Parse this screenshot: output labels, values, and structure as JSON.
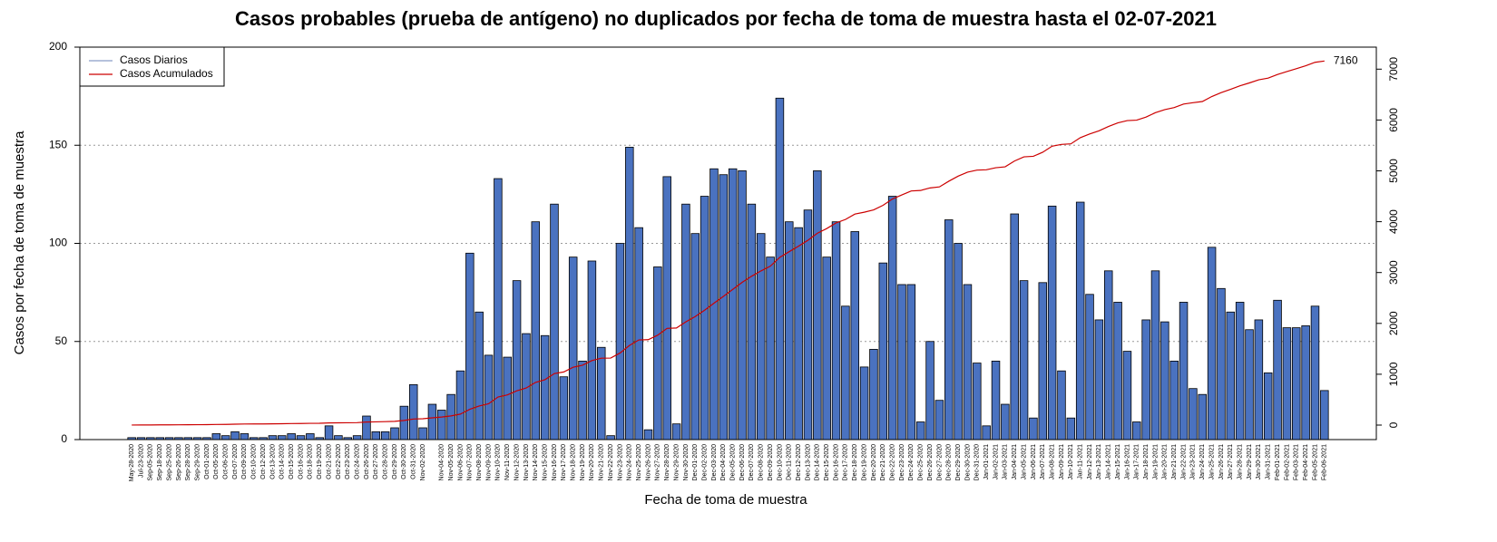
{
  "chart_data": {
    "type": "bar",
    "title": "Casos probables (prueba de antígeno) no duplicados por fecha de toma de muestra hasta el 02-07-2021",
    "x_label": "Fecha de toma de muestra",
    "y_label": "Casos por fecha de toma de muestra",
    "end_label": "7160",
    "legend": "top-left",
    "grid": true,
    "categories": [
      "May-28-2020",
      "Jul-23-2020",
      "Sep-05-2020",
      "Sep-18-2020",
      "Sep-25-2020",
      "Sep-26-2020",
      "Sep-28-2020",
      "Sep-29-2020",
      "Oct-01-2020",
      "Oct-05-2020",
      "Oct-06-2020",
      "Oct-07-2020",
      "Oct-09-2020",
      "Oct-10-2020",
      "Oct-12-2020",
      "Oct-13-2020",
      "Oct-14-2020",
      "Oct-15-2020",
      "Oct-16-2020",
      "Oct-18-2020",
      "Oct-19-2020",
      "Oct-21-2020",
      "Oct-22-2020",
      "Oct-23-2020",
      "Oct-24-2020",
      "Oct-26-2020",
      "Oct-27-2020",
      "Oct-28-2020",
      "Oct-29-2020",
      "Oct-30-2020",
      "Oct-31-2020",
      "Nov-02-2020",
      null,
      "Nov-04-2020",
      "Nov-05-2020",
      "Nov-06-2020",
      "Nov-07-2020",
      "Nov-08-2020",
      "Nov-09-2020",
      "Nov-10-2020",
      "Nov-11-2020",
      "Nov-12-2020",
      "Nov-13-2020",
      "Nov-14-2020",
      "Nov-15-2020",
      "Nov-16-2020",
      "Nov-17-2020",
      "Nov-18-2020",
      "Nov-19-2020",
      "Nov-20-2020",
      "Nov-21-2020",
      "Nov-22-2020",
      "Nov-23-2020",
      "Nov-24-2020",
      "Nov-25-2020",
      "Nov-26-2020",
      "Nov-27-2020",
      "Nov-28-2020",
      "Nov-29-2020",
      "Nov-30-2020",
      "Dec-01-2020",
      "Dec-02-2020",
      "Dec-03-2020",
      "Dec-04-2020",
      "Dec-05-2020",
      "Dec-06-2020",
      "Dec-07-2020",
      "Dec-08-2020",
      "Dec-09-2020",
      "Dec-10-2020",
      "Dec-11-2020",
      "Dec-12-2020",
      "Dec-13-2020",
      "Dec-14-2020",
      "Dec-15-2020",
      "Dec-16-2020",
      "Dec-17-2020",
      "Dec-18-2020",
      "Dec-19-2020",
      "Dec-20-2020",
      "Dec-21-2020",
      "Dec-22-2020",
      "Dec-23-2020",
      "Dec-24-2020",
      "Dec-25-2020",
      "Dec-26-2020",
      "Dec-27-2020",
      "Dec-28-2020",
      "Dec-29-2020",
      "Dec-30-2020",
      "Dec-31-2020",
      "Jan-01-2021",
      "Jan-02-2021",
      "Jan-03-2021",
      "Jan-04-2021",
      "Jan-05-2021",
      "Jan-06-2021",
      "Jan-07-2021",
      "Jan-08-2021",
      "Jan-09-2021",
      "Jan-10-2021",
      "Jan-11-2021",
      "Jan-12-2021",
      "Jan-13-2021",
      "Jan-14-2021",
      "Jan-15-2021",
      "Jan-16-2021",
      "Jan-17-2021",
      "Jan-18-2021",
      "Jan-19-2021",
      "Jan-20-2021",
      "Jan-21-2021",
      "Jan-22-2021",
      "Jan-23-2021",
      "Jan-24-2021",
      "Jan-25-2021",
      "Jan-26-2021",
      "Jan-27-2021",
      "Jan-28-2021",
      "Jan-29-2021",
      "Jan-30-2021",
      "Jan-31-2021",
      "Feb-01-2021",
      "Feb-02-2021",
      "Feb-03-2021",
      "Feb-04-2021",
      "Feb-05-2021",
      "Feb-06-2021"
    ],
    "series": [
      {
        "name": "Casos Diarios",
        "color": "#4a72c0",
        "legend_color": "#8a9ec8",
        "values": [
          1,
          1,
          1,
          1,
          1,
          1,
          1,
          1,
          1,
          3,
          2,
          4,
          3,
          1,
          1,
          2,
          2,
          3,
          2,
          3,
          1,
          7,
          2,
          1,
          2,
          12,
          4,
          4,
          6,
          17,
          28,
          6,
          18,
          15,
          23,
          35,
          95,
          65,
          43,
          133,
          42,
          81,
          54,
          111,
          53,
          120,
          32,
          93,
          40,
          91,
          47,
          2,
          100,
          149,
          108,
          5,
          88,
          134,
          8,
          120,
          105,
          124,
          138,
          135,
          138,
          137,
          120,
          105,
          93,
          174,
          111,
          108,
          117,
          137,
          93,
          111,
          68,
          106,
          37,
          46,
          90,
          124,
          79,
          79,
          9,
          50,
          20,
          112,
          100,
          79,
          39,
          7,
          40,
          18,
          115,
          81,
          11,
          80,
          119,
          35,
          11,
          121,
          74,
          61,
          86,
          70,
          45,
          9,
          61,
          86,
          60,
          40,
          70,
          26,
          23,
          98,
          77,
          65,
          70,
          56,
          61,
          34,
          71,
          57,
          57,
          58,
          68,
          25
        ]
      },
      {
        "name": "Casos Acumulados",
        "color": "#cc0000",
        "type": "line",
        "axis": "y2",
        "values": [
          1,
          2,
          3,
          4,
          5,
          6,
          7,
          8,
          9,
          12,
          14,
          18,
          21,
          22,
          23,
          25,
          27,
          30,
          32,
          35,
          36,
          43,
          45,
          46,
          48,
          60,
          64,
          68,
          74,
          91,
          119,
          125,
          143,
          158,
          181,
          216,
          311,
          376,
          419,
          552,
          594,
          675,
          729,
          840,
          893,
          1013,
          1045,
          1138,
          1178,
          1269,
          1316,
          1318,
          1418,
          1567,
          1675,
          1680,
          1768,
          1902,
          1910,
          2030,
          2135,
          2259,
          2397,
          2532,
          2670,
          2807,
          2927,
          3032,
          3125,
          3299,
          3410,
          3518,
          3635,
          3772,
          3865,
          3976,
          4044,
          4150,
          4187,
          4233,
          4323,
          4447,
          4526,
          4605,
          4614,
          4664,
          4684,
          4796,
          4896,
          4975,
          5014,
          5021,
          5061,
          5079,
          5194,
          5275,
          5286,
          5366,
          5485,
          5520,
          5531,
          5652,
          5726,
          5787,
          5873,
          5943,
          5988,
          5997,
          6058,
          6144,
          6204,
          6244,
          6314,
          6340,
          6363,
          6461,
          6538,
          6603,
          6673,
          6729,
          6790,
          6824,
          6895,
          6952,
          7009,
          7067,
          7135,
          7160
        ]
      }
    ],
    "ylim": [
      0,
      200
    ],
    "yticks": [
      0,
      50,
      100,
      150,
      200
    ],
    "y2lim": [
      -285,
      7433
    ],
    "y2ticks": [
      0,
      1000,
      2000,
      3000,
      4000,
      5000,
      6000,
      7000
    ]
  }
}
